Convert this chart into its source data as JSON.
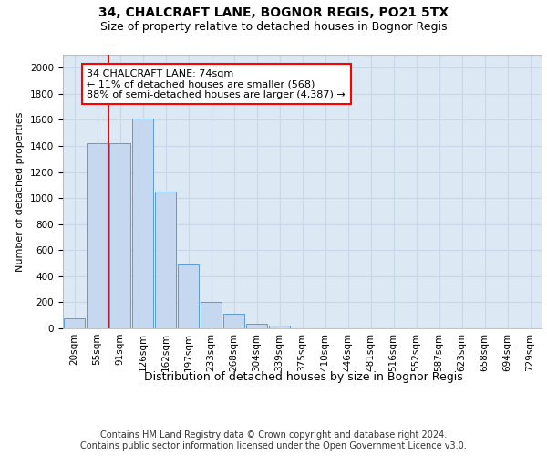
{
  "title1": "34, CHALCRAFT LANE, BOGNOR REGIS, PO21 5TX",
  "title2": "Size of property relative to detached houses in Bognor Regis",
  "xlabel": "Distribution of detached houses by size in Bognor Regis",
  "ylabel": "Number of detached properties",
  "bar_labels": [
    "20sqm",
    "55sqm",
    "91sqm",
    "126sqm",
    "162sqm",
    "197sqm",
    "233sqm",
    "268sqm",
    "304sqm",
    "339sqm",
    "375sqm",
    "410sqm",
    "446sqm",
    "481sqm",
    "516sqm",
    "552sqm",
    "587sqm",
    "623sqm",
    "658sqm",
    "694sqm",
    "729sqm"
  ],
  "bar_values": [
    80,
    1420,
    1420,
    1610,
    1050,
    490,
    200,
    110,
    35,
    20,
    0,
    0,
    0,
    0,
    0,
    0,
    0,
    0,
    0,
    0,
    0
  ],
  "bar_color": "#c5d8ef",
  "bar_edge_color": "#5b9bd5",
  "annotation_text": "34 CHALCRAFT LANE: 74sqm\n← 11% of detached houses are smaller (568)\n88% of semi-detached houses are larger (4,387) →",
  "vline_x_index": 1.5,
  "vline_color": "red",
  "annotation_box_color": "white",
  "annotation_box_edge": "red",
  "ylim": [
    0,
    2100
  ],
  "yticks": [
    0,
    200,
    400,
    600,
    800,
    1000,
    1200,
    1400,
    1600,
    1800,
    2000
  ],
  "grid_color": "#c8d8e8",
  "bg_color": "#dce8f4",
  "footnote": "Contains HM Land Registry data © Crown copyright and database right 2024.\nContains public sector information licensed under the Open Government Licence v3.0.",
  "title1_fontsize": 10,
  "title2_fontsize": 9,
  "xlabel_fontsize": 9,
  "ylabel_fontsize": 8,
  "annotation_fontsize": 8,
  "tick_fontsize": 7.5,
  "footnote_fontsize": 7
}
